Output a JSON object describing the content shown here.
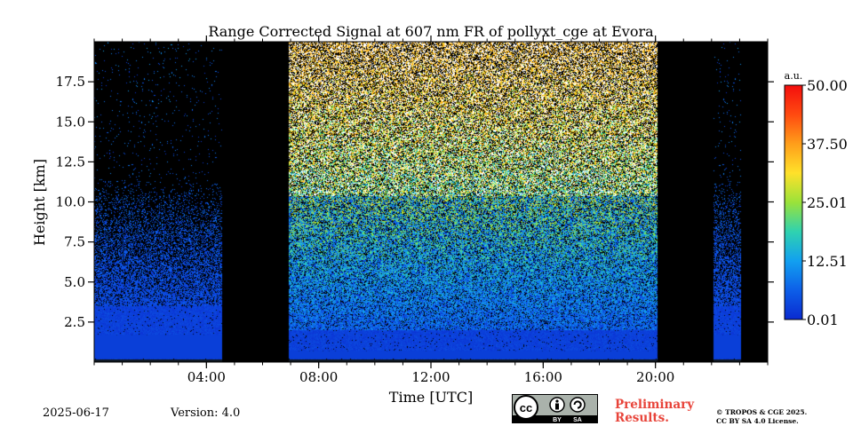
{
  "chart_data": {
    "type": "heatmap",
    "title": "Range Corrected Signal at 607 nm FR of pollyxt_cge at Evora",
    "xlabel": "Time [UTC]",
    "ylabel": "Height [km]",
    "xlim": [
      0,
      24
    ],
    "ylim": [
      0,
      20
    ],
    "x_ticks": [
      4,
      8,
      12,
      16,
      20
    ],
    "x_tick_labels": [
      "04:00",
      "08:00",
      "12:00",
      "16:00",
      "20:00"
    ],
    "x_minor_step_hours": 1,
    "y_ticks": [
      2.5,
      5.0,
      7.5,
      10.0,
      12.5,
      15.0,
      17.5
    ],
    "y_tick_labels": [
      "2.5",
      "5.0",
      "7.5",
      "10.0",
      "12.5",
      "15.0",
      "17.5"
    ],
    "colorbar": {
      "unit": "a.u.",
      "min": 0.01,
      "max": 50.0,
      "ticks": [
        0.01,
        12.51,
        25.01,
        37.5,
        50.0
      ],
      "tick_labels": [
        "0.01",
        "12.51",
        "25.01",
        "37.50",
        "50.00"
      ],
      "colormap": "jet"
    },
    "no_data_intervals_hours": [
      [
        4.55,
        6.95
      ],
      [
        20.05,
        22.1
      ],
      [
        23.05,
        24.0
      ]
    ],
    "data_segments_hours": [
      [
        0,
        4.55
      ],
      [
        6.95,
        20.05
      ],
      [
        22.1,
        23.05
      ]
    ],
    "dense_low_signal_top_km": [
      3.5,
      2.0,
      3.5
    ],
    "bright_signal_top_km": 20.0
  },
  "footer": {
    "date": "2025-06-17",
    "version": "Version: 4.0",
    "preliminary_line1": "Preliminary",
    "preliminary_line2": "Results.",
    "copyright_line1": "© TROPOS & CGE 2025.",
    "copyright_line2": "CC BY SA 4.0 License.",
    "license_badge": {
      "cc": "cc",
      "by": "BY",
      "sa": "SA"
    }
  },
  "colors": {
    "no_data": "#000000",
    "low_signal": "#0a3fd8",
    "prelim_text": "#e8443a"
  }
}
